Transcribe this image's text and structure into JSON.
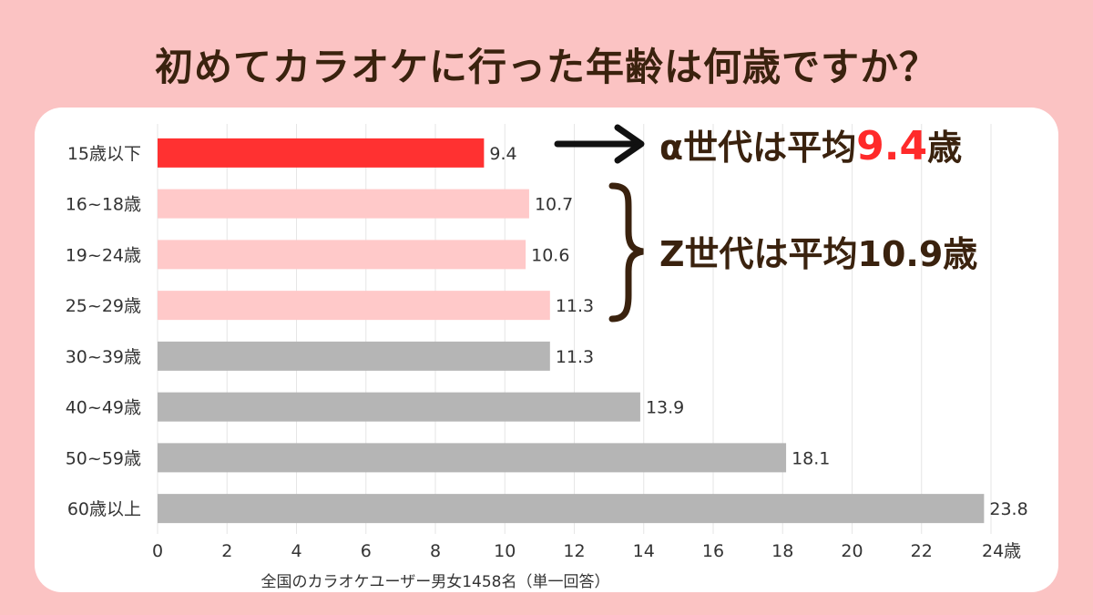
{
  "title": "初めてカラオケに行った年齢は何歳ですか？",
  "annotations": {
    "alpha": {
      "prefix": "α世代は平均",
      "value": "9.4",
      "suffix": "歳"
    },
    "z": {
      "text": "Z世代は平均10.9歳"
    }
  },
  "colors": {
    "alpha": "#ff3131",
    "z": "#ffc9c9",
    "other": "#b5b5b5",
    "text": "#3a220e",
    "highlight": "#ff2a2a"
  },
  "chart_data": {
    "type": "bar",
    "orientation": "horizontal",
    "categories": [
      "15歳以下",
      "16~18歳",
      "19~24歳",
      "25~29歳",
      "30~39歳",
      "40~49歳",
      "50~59歳",
      "60歳以上"
    ],
    "values": [
      9.4,
      10.7,
      10.6,
      11.3,
      11.3,
      13.9,
      18.1,
      23.8
    ],
    "value_labels": [
      "9.4",
      "10.7",
      "10.6",
      "11.3",
      "11.3",
      "13.9",
      "18.1",
      "23.8"
    ],
    "bar_colors": [
      "#ff3131",
      "#ffc9c9",
      "#ffc9c9",
      "#ffc9c9",
      "#b5b5b5",
      "#b5b5b5",
      "#b5b5b5",
      "#b5b5b5"
    ],
    "xlim": [
      0,
      24
    ],
    "xticks": [
      "0",
      "2",
      "4",
      "6",
      "8",
      "10",
      "12",
      "14",
      "16",
      "18",
      "20",
      "22",
      "24歳"
    ],
    "xlabel": "全国のカラオケユーザー男女1458名（単一回答）",
    "grid": "vertical"
  }
}
